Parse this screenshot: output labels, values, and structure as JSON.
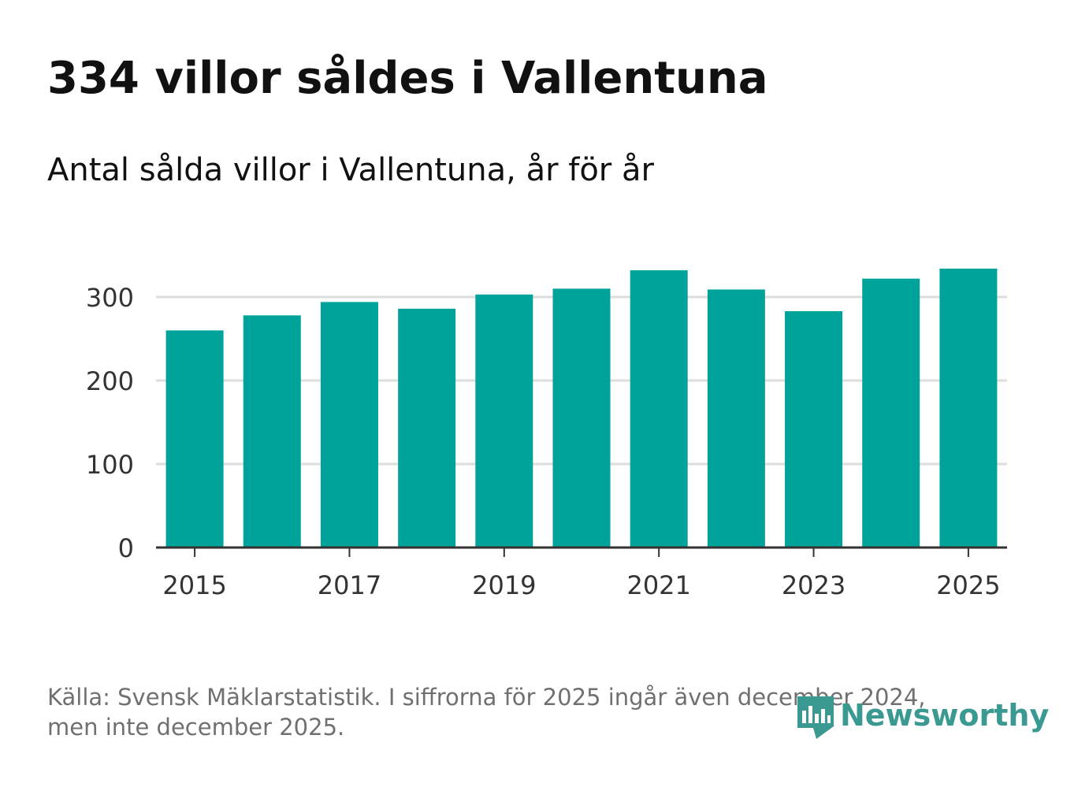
{
  "title": "334 villor såldes i Vallentuna",
  "subtitle": "Antal sålda villor i Vallentuna, år för år",
  "footer": {
    "line1": "Källa: Svensk Mäklarstatistik. I siffrorna för 2025 ingår även december 2024,",
    "line2": "men inte december 2025."
  },
  "logo": {
    "text": "Newsworthy",
    "icon": "newsworthy-logo-icon",
    "color": "#3a9a92"
  },
  "colors": {
    "bar": "#00a39a",
    "grid": "#dddddd",
    "axis": "#333333"
  },
  "chart_data": {
    "type": "bar",
    "title": "Antal sålda villor i Vallentuna, år för år",
    "xlabel": "",
    "ylabel": "",
    "categories": [
      "2015",
      "2016",
      "2017",
      "2018",
      "2019",
      "2020",
      "2021",
      "2022",
      "2023",
      "2024",
      "2025"
    ],
    "values": [
      260,
      278,
      294,
      286,
      303,
      310,
      332,
      309,
      283,
      322,
      334
    ],
    "ylim": [
      0,
      340
    ],
    "yticks": [
      0,
      100,
      200,
      300
    ],
    "xtick_labels": [
      "2015",
      "2017",
      "2019",
      "2021",
      "2023",
      "2025"
    ],
    "grid": true,
    "legend": "none"
  }
}
